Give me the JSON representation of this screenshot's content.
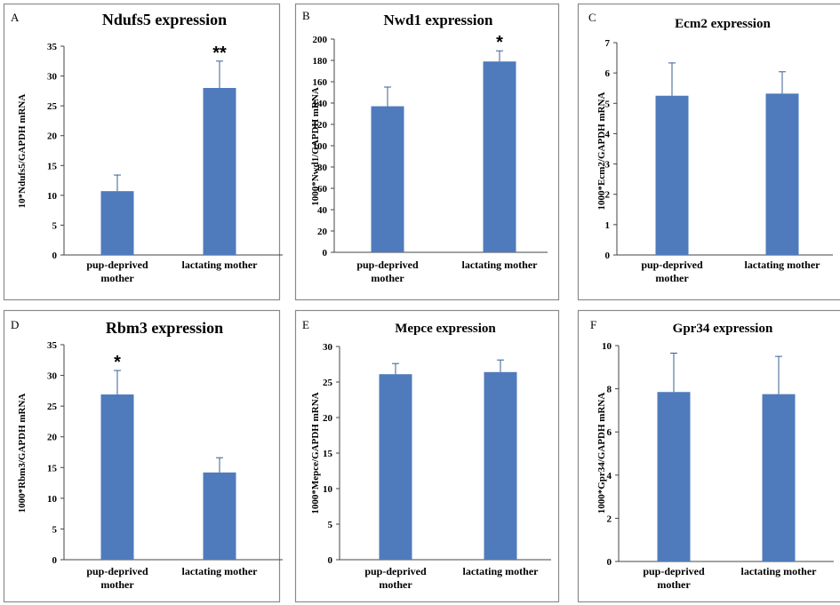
{
  "colors": {
    "bar": "#4f7bbd",
    "axis": "#444444",
    "frame": "#8a8a8a"
  },
  "chart_data": [
    {
      "type": "bar",
      "panel_letter": "A",
      "title": "Ndufs5 expression",
      "ylabel": "10*Ndufs5/GAPDH mRNA",
      "categories": [
        [
          "pup-deprived",
          "mother"
        ],
        [
          "lactating mother"
        ]
      ],
      "values": [
        10.7,
        28.0
      ],
      "errors": [
        2.7,
        4.5
      ],
      "significance": [
        "",
        "**"
      ],
      "ylim": [
        0,
        35
      ],
      "yticks": [
        "0",
        "5",
        "10",
        "15",
        "20",
        "25",
        "30",
        "35"
      ]
    },
    {
      "type": "bar",
      "panel_letter": "B",
      "title": "Nwd1 expression",
      "ylabel": "1000*Nwd1/GAPDH mRNA",
      "categories": [
        [
          "pup-deprived",
          "mother"
        ],
        [
          "lactating mother"
        ]
      ],
      "values": [
        137,
        179
      ],
      "errors": [
        18,
        10
      ],
      "significance": [
        "",
        "*"
      ],
      "ylim": [
        0,
        200
      ],
      "yticks": [
        "0",
        "20",
        "40",
        "60",
        "80",
        "100",
        "120",
        "140",
        "160",
        "180",
        "200"
      ]
    },
    {
      "type": "bar",
      "panel_letter": "C",
      "title": "Ecm2 expression",
      "ylabel": "1000*Ecm2/GAPDH mRNA",
      "categories": [
        [
          "pup-deprived",
          "mother"
        ],
        [
          "lactating mother"
        ]
      ],
      "values": [
        5.25,
        5.32
      ],
      "errors": [
        1.08,
        0.72
      ],
      "significance": [
        "",
        ""
      ],
      "ylim": [
        0,
        7
      ],
      "yticks": [
        "0",
        "1",
        "2",
        "3",
        "4",
        "5",
        "6",
        "7"
      ]
    },
    {
      "type": "bar",
      "panel_letter": "D",
      "title": "Rbm3 expression",
      "ylabel": "1000*Rbm3/GAPDH mRNA",
      "categories": [
        [
          "pup-deprived",
          "mother"
        ],
        [
          "lactating mother"
        ]
      ],
      "values": [
        26.9,
        14.2
      ],
      "errors": [
        3.9,
        2.4
      ],
      "significance": [
        "*",
        ""
      ],
      "ylim": [
        0,
        35
      ],
      "yticks": [
        "0",
        "5",
        "10",
        "15",
        "20",
        "25",
        "30",
        "35"
      ]
    },
    {
      "type": "bar",
      "panel_letter": "E",
      "title": "Mepce expression",
      "ylabel": "1000*Mepce/GAPDH mRNA",
      "categories": [
        [
          "pup-deprived",
          "mother"
        ],
        [
          "lactating mother"
        ]
      ],
      "values": [
        26.1,
        26.4
      ],
      "errors": [
        1.5,
        1.7
      ],
      "significance": [
        "",
        ""
      ],
      "ylim": [
        0,
        30
      ],
      "yticks": [
        "0",
        "5",
        "10",
        "15",
        "20",
        "25",
        "30"
      ]
    },
    {
      "type": "bar",
      "panel_letter": "F",
      "title": "Gpr34 expression",
      "ylabel": "1000*Gpr34/GAPDH mRNA",
      "categories": [
        [
          "pup-deprived",
          "mother"
        ],
        [
          "lactating mother"
        ]
      ],
      "values": [
        7.85,
        7.75
      ],
      "errors": [
        1.8,
        1.75
      ],
      "significance": [
        "",
        ""
      ],
      "ylim": [
        0,
        10
      ],
      "yticks": [
        "0",
        "2",
        "4",
        "6",
        "8",
        "10"
      ]
    }
  ]
}
